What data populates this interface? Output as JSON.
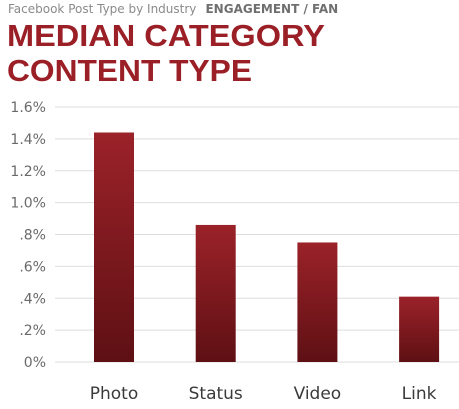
{
  "chart_data": {
    "type": "bar",
    "supertitle": "Facebook Post Type by Industry",
    "supertitle_emphasis": "ENGAGEMENT / FAN",
    "title_lines": [
      "MEDIAN CATEGORY",
      "CONTENT TYPE"
    ],
    "categories": [
      "Photo",
      "Status",
      "Video",
      "Link"
    ],
    "values": [
      1.44,
      0.86,
      0.75,
      0.41
    ],
    "color": "#9b2229",
    "ylim": [
      0,
      1.6
    ],
    "yticks": [
      {
        "value": 0,
        "label": "0%"
      },
      {
        "value": 0.2,
        "label": ".2%"
      },
      {
        "value": 0.4,
        "label": ".4%"
      },
      {
        "value": 0.6,
        "label": ".6%"
      },
      {
        "value": 0.8,
        "label": ".8%"
      },
      {
        "value": 1.0,
        "label": "1.0%"
      },
      {
        "value": 1.2,
        "label": "1.2%"
      },
      {
        "value": 1.4,
        "label": "1.4%"
      },
      {
        "value": 1.6,
        "label": "1.6%"
      }
    ],
    "grid": true
  }
}
